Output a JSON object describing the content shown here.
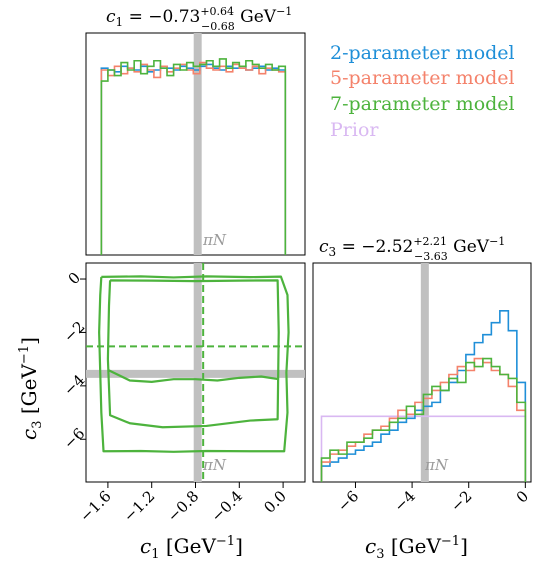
{
  "title_c1": {
    "var": "c",
    "sub": "1",
    "eq": " = −0.73",
    "sup": "+0.64",
    "subv": "−0.68",
    "unit": " GeV",
    "unit_exp": "−1"
  },
  "title_c3": {
    "var": "c",
    "sub": "3",
    "eq": " = −2.52",
    "sup": "+2.21",
    "subv": "−3.63",
    "unit": " GeV",
    "unit_exp": "−1"
  },
  "axis_labels": {
    "x_c1": {
      "var": "c",
      "sub": "1",
      "unit": " [GeV",
      "exp": "−1",
      "close": "]"
    },
    "x_c3": {
      "var": "c",
      "sub": "3",
      "unit": " [GeV",
      "exp": "−1",
      "close": "]"
    },
    "y_c3": {
      "var": "c",
      "sub": "3",
      "unit": " [GeV",
      "exp": "−1",
      "close": "]"
    }
  },
  "annotation_piN": "πN",
  "colors": {
    "model2": "#1f8fd8",
    "model5": "#f4826b",
    "model7": "#4db33d",
    "prior": "#d9b8f2",
    "reference": "#c0c0c0"
  },
  "legend": [
    {
      "label": "2-parameter model",
      "color_key": "model2"
    },
    {
      "label": "5-parameter model",
      "color_key": "model5"
    },
    {
      "label": "7-parameter model",
      "color_key": "model7"
    },
    {
      "label": "Prior",
      "color_key": "prior"
    }
  ],
  "chart_data": [
    {
      "type": "histogram",
      "panel": "c1-marginal",
      "xlim": [
        -1.8,
        0.2
      ],
      "ylim": [
        0,
        1.2
      ],
      "reference_line_x": -0.78,
      "bin_edges": [
        -1.66,
        -1.6,
        -1.54,
        -1.48,
        -1.42,
        -1.36,
        -1.3,
        -1.24,
        -1.18,
        -1.12,
        -1.06,
        -1.0,
        -0.94,
        -0.88,
        -0.82,
        -0.76,
        -0.7,
        -0.64,
        -0.58,
        -0.52,
        -0.46,
        -0.4,
        -0.34,
        -0.28,
        -0.22,
        -0.16,
        -0.1,
        -0.04,
        0.02
      ],
      "series": [
        {
          "color_key": "model2",
          "values": [
            1.01,
            1.0,
            0.99,
            1.02,
            1.01,
            1.0,
            1.02,
            0.99,
            1.0,
            1.02,
            1.01,
            1.0,
            1.02,
            1.01,
            1.0,
            1.02,
            1.03,
            1.01,
            1.0,
            1.02,
            1.01,
            1.02,
            1.0,
            1.01,
            1.02,
            1.0,
            1.01,
            1.0
          ]
        },
        {
          "color_key": "model5",
          "values": [
            1.0,
            0.97,
            1.02,
            0.98,
            1.01,
            0.99,
            1.03,
            1.0,
            0.96,
            1.02,
            0.99,
            1.01,
            1.03,
            1.0,
            0.98,
            1.04,
            1.01,
            1.0,
            1.02,
            0.99,
            1.03,
            1.01,
            1.0,
            1.02,
            0.98,
            1.01,
            1.0,
            0.99
          ]
        },
        {
          "color_key": "model7",
          "values": [
            0.94,
            1.0,
            0.97,
            1.04,
            1.0,
            1.05,
            0.98,
            1.02,
            1.05,
            1.01,
            0.97,
            1.03,
            1.0,
            1.04,
            1.02,
            1.03,
            1.05,
            1.02,
            1.06,
            1.01,
            1.04,
            1.02,
            1.05,
            1.03,
            1.01,
            1.03,
            1.0,
            1.02
          ]
        }
      ]
    },
    {
      "type": "contour",
      "panel": "c1-c3-joint",
      "xlim": [
        -1.8,
        0.2
      ],
      "ylim": [
        -7.6,
        0.6
      ],
      "xticks": [
        -1.6,
        -1.2,
        -0.8,
        -0.4,
        0.0
      ],
      "xticklabels": [
        "−1.6",
        "−1.2",
        "−0.8",
        "−0.4",
        "0.0"
      ],
      "yticks": [
        0,
        -2,
        -4,
        -6
      ],
      "yticklabels": [
        "0",
        "−2",
        "−4",
        "−6"
      ],
      "reference_x": -0.78,
      "reference_y": -3.55,
      "median_x": -0.73,
      "median_y": -2.52,
      "contours": [
        {
          "level": "outer",
          "x": [
            -1.66,
            -1.3,
            -1.0,
            -0.7,
            -0.3,
            -0.02,
            0.04,
            0.05,
            0.03,
            0.04,
            0.01,
            -0.3,
            -0.7,
            -1.0,
            -1.3,
            -1.64,
            -1.66,
            -1.67,
            -1.68,
            -1.67,
            -1.66
          ],
          "y": [
            0.08,
            0.1,
            0.06,
            0.1,
            0.07,
            0.09,
            -0.6,
            -2.0,
            -3.5,
            -5.0,
            -6.45,
            -6.45,
            -6.44,
            -6.47,
            -6.44,
            -6.45,
            -5.0,
            -3.5,
            -2.0,
            -0.6,
            0.08
          ]
        },
        {
          "level": "inner",
          "x": [
            -1.58,
            -1.2,
            -0.8,
            -0.4,
            -0.05,
            -0.04,
            -0.05,
            -0.3,
            -0.7,
            -1.1,
            -1.4,
            -1.58,
            -1.6,
            -1.59,
            -1.58
          ],
          "y": [
            -0.05,
            -0.06,
            -0.08,
            -0.06,
            -0.05,
            -2.0,
            -5.25,
            -5.3,
            -5.5,
            -5.55,
            -5.4,
            -5.1,
            -3.0,
            -1.0,
            -0.05
          ]
        },
        {
          "level": "mid",
          "x": [
            -1.6,
            -1.4,
            -1.2,
            -1.0,
            -0.8,
            -0.6,
            -0.4,
            -0.2,
            -0.04
          ],
          "y": [
            -3.4,
            -3.8,
            -3.85,
            -3.75,
            -3.75,
            -3.8,
            -3.7,
            -3.65,
            -3.75
          ]
        }
      ]
    },
    {
      "type": "histogram",
      "panel": "c3-marginal",
      "xlim": [
        -7.5,
        0.2
      ],
      "ylim": [
        0,
        0.55
      ],
      "xticks": [
        -6,
        -4,
        -2,
        0
      ],
      "xticklabels": [
        "−6",
        "−4",
        "−2",
        "0"
      ],
      "reference_line_x": -3.55,
      "prior_level": 0.165,
      "bin_edges": [
        -7.2,
        -6.9,
        -6.6,
        -6.3,
        -6.0,
        -5.7,
        -5.4,
        -5.1,
        -4.8,
        -4.5,
        -4.2,
        -3.9,
        -3.6,
        -3.3,
        -3.0,
        -2.7,
        -2.4,
        -2.1,
        -1.8,
        -1.5,
        -1.2,
        -0.9,
        -0.6,
        -0.3,
        0.0
      ],
      "series": [
        {
          "color_key": "model2",
          "values": [
            0.04,
            0.05,
            0.06,
            0.07,
            0.08,
            0.09,
            0.1,
            0.12,
            0.13,
            0.15,
            0.16,
            0.18,
            0.19,
            0.2,
            0.23,
            0.25,
            0.28,
            0.32,
            0.35,
            0.37,
            0.4,
            0.43,
            0.38,
            0.25
          ]
        },
        {
          "color_key": "model5",
          "values": [
            0.05,
            0.07,
            0.08,
            0.09,
            0.1,
            0.12,
            0.13,
            0.14,
            0.16,
            0.18,
            0.17,
            0.2,
            0.21,
            0.23,
            0.25,
            0.27,
            0.29,
            0.28,
            0.31,
            0.3,
            0.28,
            0.27,
            0.24,
            0.18
          ]
        },
        {
          "color_key": "model7",
          "values": [
            0.06,
            0.08,
            0.07,
            0.1,
            0.1,
            0.11,
            0.13,
            0.13,
            0.15,
            0.16,
            0.19,
            0.17,
            0.22,
            0.24,
            0.23,
            0.26,
            0.25,
            0.3,
            0.29,
            0.31,
            0.29,
            0.27,
            0.26,
            0.2
          ]
        }
      ]
    }
  ]
}
